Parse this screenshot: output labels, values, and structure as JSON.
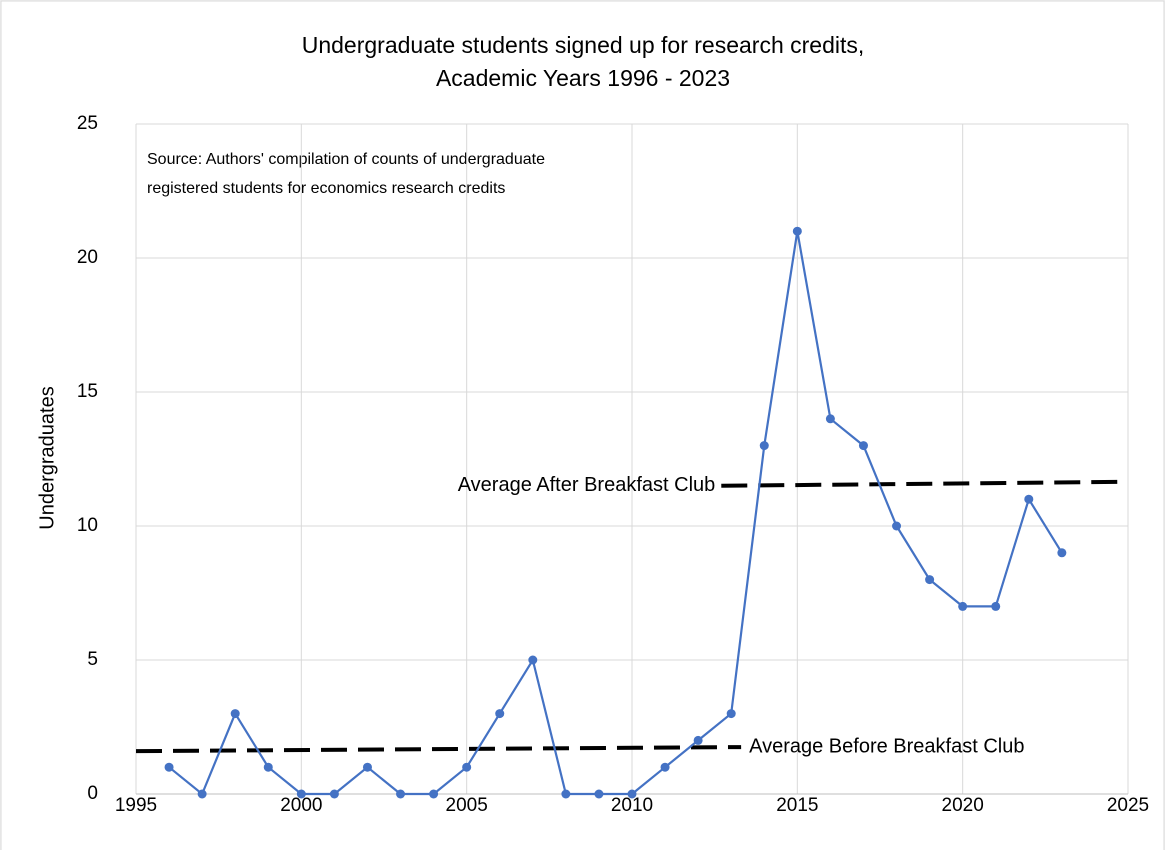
{
  "chart_data": {
    "type": "line",
    "title": [
      "Undergraduate students signed up for research credits,",
      "Academic Years 1996 - 2023"
    ],
    "ylabel": "Undergraduates",
    "note": [
      "Source: Authors' compilation of counts of undergraduate",
      "registered students for economics research credits"
    ],
    "x": [
      1996,
      1997,
      1998,
      1999,
      2000,
      2001,
      2002,
      2003,
      2004,
      2005,
      2006,
      2007,
      2008,
      2009,
      2010,
      2011,
      2012,
      2013,
      2014,
      2015,
      2016,
      2017,
      2018,
      2019,
      2020,
      2021,
      2022,
      2023
    ],
    "values": [
      1,
      0,
      3,
      1,
      0,
      0,
      1,
      0,
      0,
      1,
      3,
      5,
      0,
      0,
      0,
      1,
      2,
      3,
      13,
      21,
      14,
      13,
      10,
      8,
      7,
      7,
      11,
      9
    ],
    "color": "#4472c4",
    "trend_lines": [
      {
        "label": "Average Before Breakfast Club",
        "x": [
          1995,
          2013.3
        ],
        "values": [
          1.6,
          1.75
        ],
        "color": "#000000"
      },
      {
        "label": "Average After Breakfast Club",
        "x": [
          2012.7,
          2025
        ],
        "values": [
          11.5,
          11.65
        ],
        "color": "#000000"
      }
    ],
    "xlim": [
      1995,
      2025
    ],
    "xticks": [
      1995,
      2000,
      2005,
      2010,
      2015,
      2020,
      2025
    ],
    "ylim": [
      0,
      25
    ],
    "yticks": [
      0,
      5,
      10,
      15,
      20,
      25
    ],
    "grid": true
  }
}
